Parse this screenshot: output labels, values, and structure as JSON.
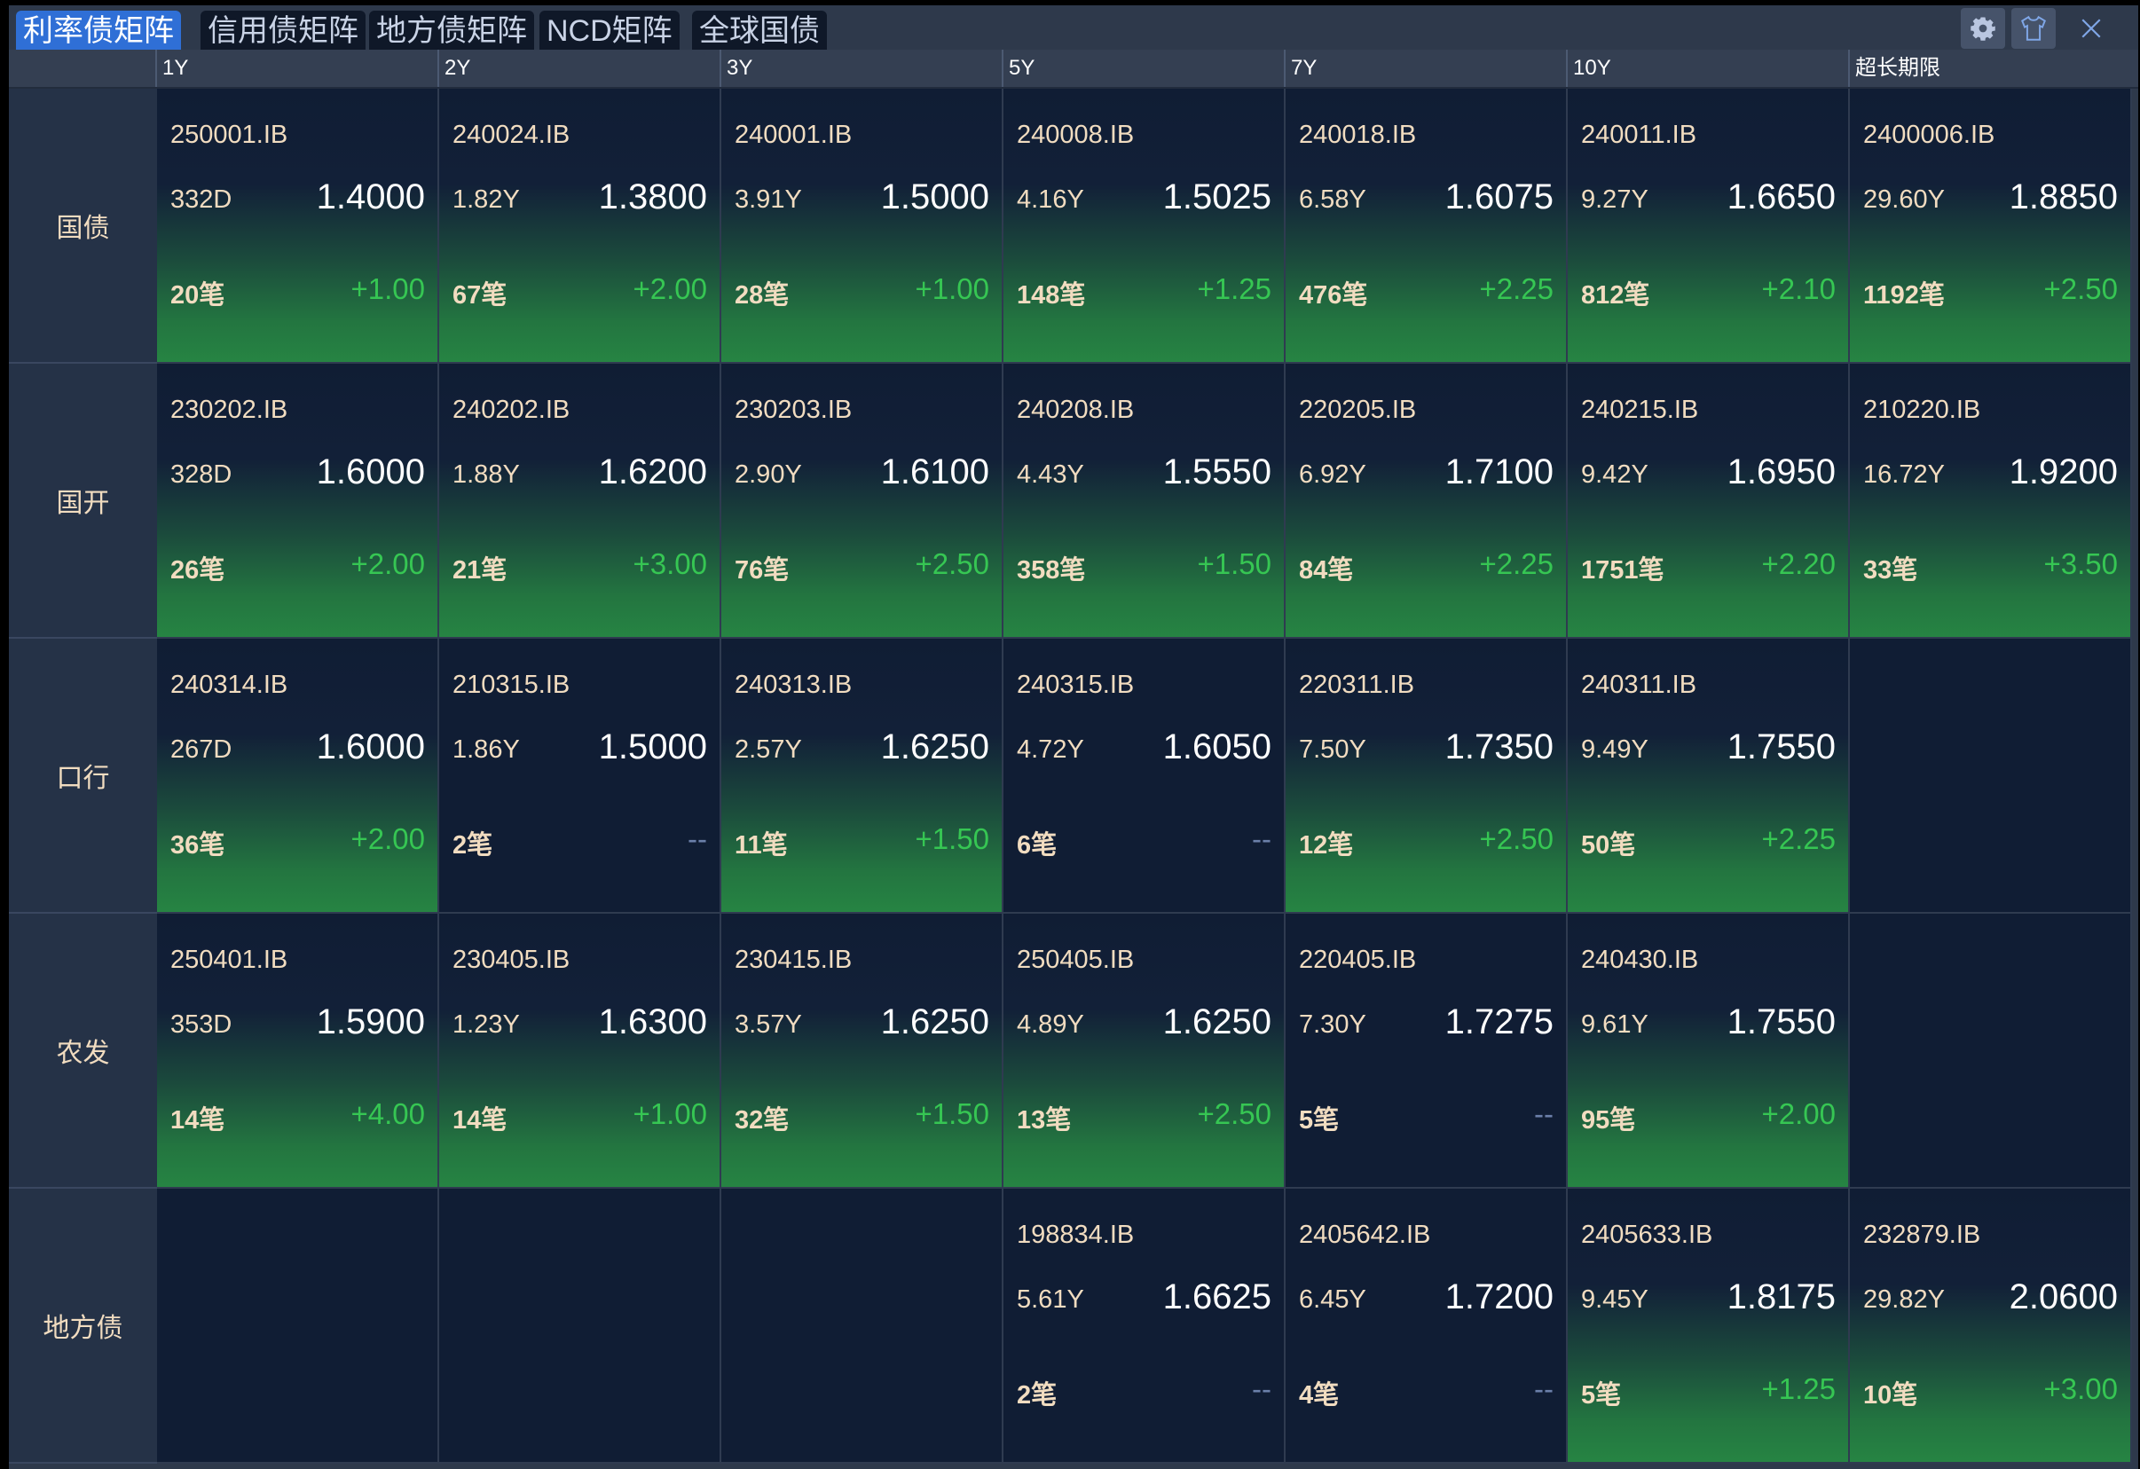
{
  "tabs": [
    {
      "label": "利率债矩阵",
      "active": true
    },
    {
      "label": "信用债矩阵"
    },
    {
      "label": "地方债矩阵"
    },
    {
      "label": "NCD矩阵"
    },
    {
      "label": "全球国债"
    }
  ],
  "toolbar": {
    "icons": [
      "gear-icon",
      "shirt-icon",
      "close-icon"
    ]
  },
  "colors": {
    "accent": "#2f6fd6",
    "up": "#36c653",
    "code": "#f1dcc0",
    "bg": "#101d34"
  },
  "columns": [
    "1Y",
    "2Y",
    "3Y",
    "5Y",
    "7Y",
    "10Y",
    "超长期限"
  ],
  "rows": [
    {
      "label": "国债",
      "cells": [
        {
          "code": "250001.IB",
          "term": "332D",
          "yield": "1.4000",
          "count": "20笔",
          "change": "+1.00"
        },
        {
          "code": "240024.IB",
          "term": "1.82Y",
          "yield": "1.3800",
          "count": "67笔",
          "change": "+2.00"
        },
        {
          "code": "240001.IB",
          "term": "3.91Y",
          "yield": "1.5000",
          "count": "28笔",
          "change": "+1.00"
        },
        {
          "code": "240008.IB",
          "term": "4.16Y",
          "yield": "1.5025",
          "count": "148笔",
          "change": "+1.25"
        },
        {
          "code": "240018.IB",
          "term": "6.58Y",
          "yield": "1.6075",
          "count": "476笔",
          "change": "+2.25"
        },
        {
          "code": "240011.IB",
          "term": "9.27Y",
          "yield": "1.6650",
          "count": "812笔",
          "change": "+2.10"
        },
        {
          "code": "2400006.IB",
          "term": "29.60Y",
          "yield": "1.8850",
          "count": "1192笔",
          "change": "+2.50"
        }
      ]
    },
    {
      "label": "国开",
      "cells": [
        {
          "code": "230202.IB",
          "term": "328D",
          "yield": "1.6000",
          "count": "26笔",
          "change": "+2.00"
        },
        {
          "code": "240202.IB",
          "term": "1.88Y",
          "yield": "1.6200",
          "count": "21笔",
          "change": "+3.00"
        },
        {
          "code": "230203.IB",
          "term": "2.90Y",
          "yield": "1.6100",
          "count": "76笔",
          "change": "+2.50"
        },
        {
          "code": "240208.IB",
          "term": "4.43Y",
          "yield": "1.5550",
          "count": "358笔",
          "change": "+1.50"
        },
        {
          "code": "220205.IB",
          "term": "6.92Y",
          "yield": "1.7100",
          "count": "84笔",
          "change": "+2.25"
        },
        {
          "code": "240215.IB",
          "term": "9.42Y",
          "yield": "1.6950",
          "count": "1751笔",
          "change": "+2.20"
        },
        {
          "code": "210220.IB",
          "term": "16.72Y",
          "yield": "1.9200",
          "count": "33笔",
          "change": "+3.50"
        }
      ]
    },
    {
      "label": "口行",
      "cells": [
        {
          "code": "240314.IB",
          "term": "267D",
          "yield": "1.6000",
          "count": "36笔",
          "change": "+2.00"
        },
        {
          "code": "210315.IB",
          "term": "1.86Y",
          "yield": "1.5000",
          "count": "2笔",
          "change": "--"
        },
        {
          "code": "240313.IB",
          "term": "2.57Y",
          "yield": "1.6250",
          "count": "11笔",
          "change": "+1.50"
        },
        {
          "code": "240315.IB",
          "term": "4.72Y",
          "yield": "1.6050",
          "count": "6笔",
          "change": "--"
        },
        {
          "code": "220311.IB",
          "term": "7.50Y",
          "yield": "1.7350",
          "count": "12笔",
          "change": "+2.50"
        },
        {
          "code": "240311.IB",
          "term": "9.49Y",
          "yield": "1.7550",
          "count": "50笔",
          "change": "+2.25"
        },
        null
      ]
    },
    {
      "label": "农发",
      "cells": [
        {
          "code": "250401.IB",
          "term": "353D",
          "yield": "1.5900",
          "count": "14笔",
          "change": "+4.00"
        },
        {
          "code": "230405.IB",
          "term": "1.23Y",
          "yield": "1.6300",
          "count": "14笔",
          "change": "+1.00"
        },
        {
          "code": "230415.IB",
          "term": "3.57Y",
          "yield": "1.6250",
          "count": "32笔",
          "change": "+1.50"
        },
        {
          "code": "250405.IB",
          "term": "4.89Y",
          "yield": "1.6250",
          "count": "13笔",
          "change": "+2.50"
        },
        {
          "code": "220405.IB",
          "term": "7.30Y",
          "yield": "1.7275",
          "count": "5笔",
          "change": "--"
        },
        {
          "code": "240430.IB",
          "term": "9.61Y",
          "yield": "1.7550",
          "count": "95笔",
          "change": "+2.00"
        },
        null
      ]
    },
    {
      "label": "地方债",
      "cells": [
        null,
        null,
        null,
        {
          "code": "198834.IB",
          "term": "5.61Y",
          "yield": "1.6625",
          "count": "2笔",
          "change": "--"
        },
        {
          "code": "2405642.IB",
          "term": "6.45Y",
          "yield": "1.7200",
          "count": "4笔",
          "change": "--"
        },
        {
          "code": "2405633.IB",
          "term": "9.45Y",
          "yield": "1.8175",
          "count": "5笔",
          "change": "+1.25"
        },
        {
          "code": "232879.IB",
          "term": "29.82Y",
          "yield": "2.0600",
          "count": "10笔",
          "change": "+3.00"
        }
      ]
    }
  ]
}
